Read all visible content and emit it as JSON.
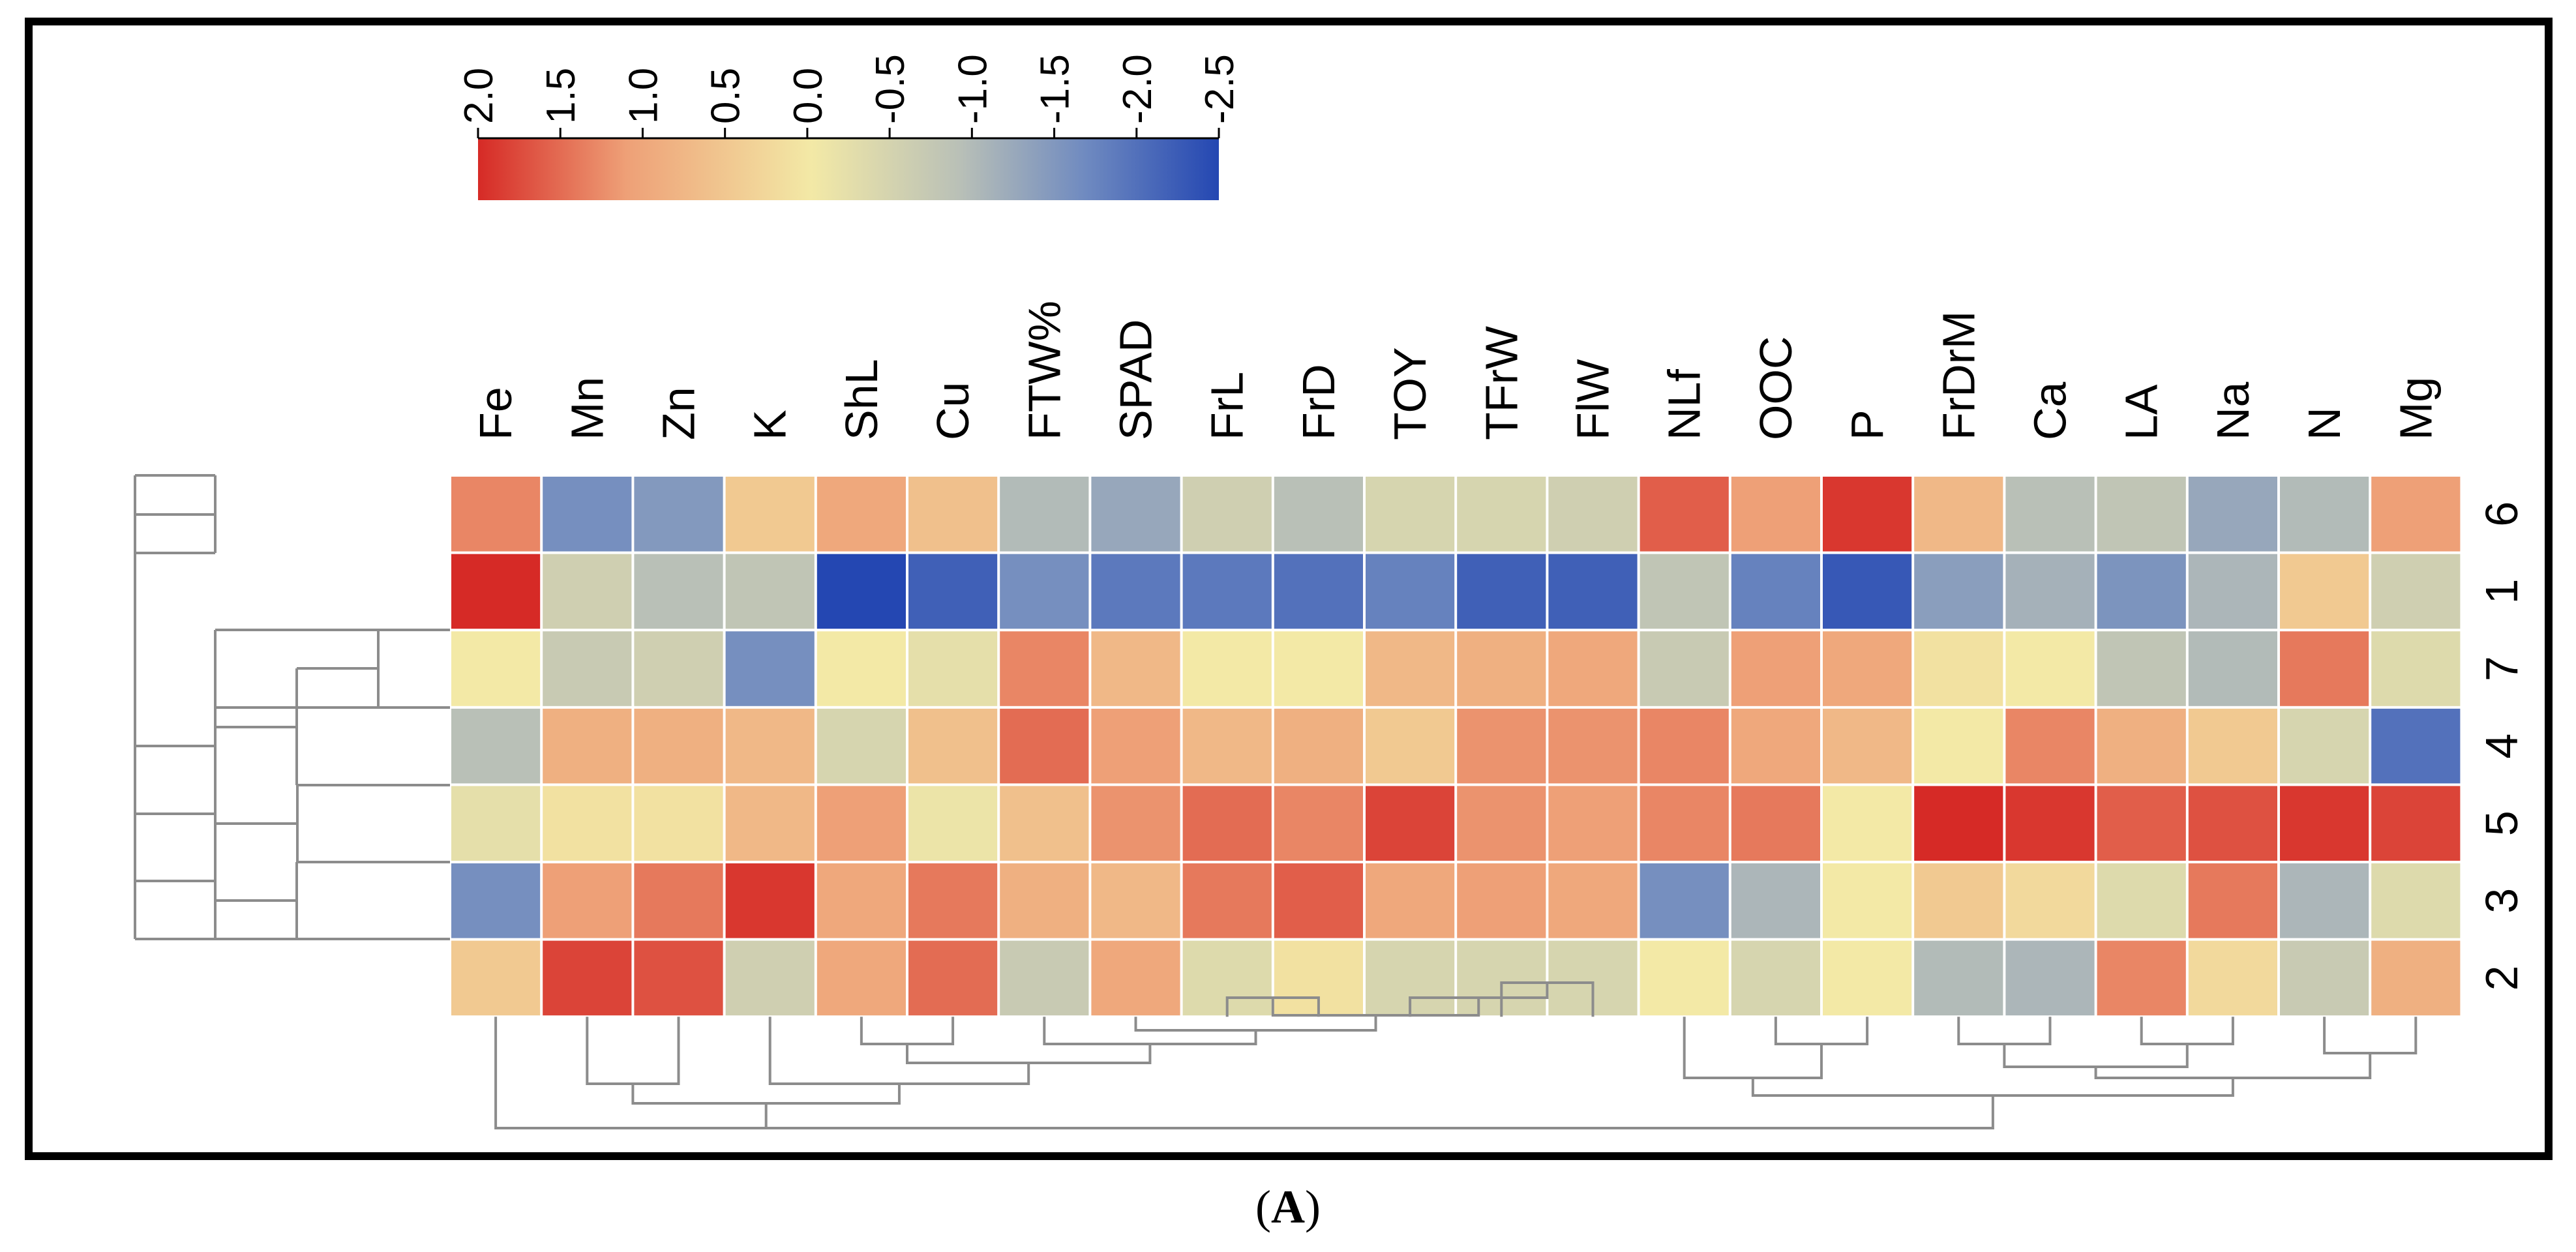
{
  "caption": {
    "open": "(",
    "letter": "A",
    "close": ")"
  },
  "chart_data": {
    "type": "heatmap",
    "columns": [
      "Fe",
      "Mn",
      "Zn",
      "K",
      "ShL",
      "Cu",
      "FTW%",
      "SPAD",
      "FrL",
      "FrD",
      "TOY",
      "TFrW",
      "FlW",
      "NLf",
      "OOC",
      "P",
      "FrDrM",
      "Ca",
      "LA",
      "Na",
      "N",
      "Mg"
    ],
    "rows": [
      "6",
      "1",
      "7",
      "4",
      "5",
      "3",
      "2"
    ],
    "values": [
      [
        1.3,
        -1.6,
        -1.4,
        0.6,
        1.0,
        0.7,
        -0.7,
        -1.1,
        -0.3,
        -0.6,
        -0.2,
        -0.2,
        -0.3,
        1.6,
        1.1,
        1.9,
        0.8,
        -0.6,
        -0.5,
        -1.1,
        -0.7,
        1.1
      ],
      [
        2.0,
        -0.3,
        -0.6,
        -0.5,
        -2.5,
        -2.2,
        -1.6,
        -1.9,
        -1.9,
        -2.0,
        -1.8,
        -2.2,
        -2.2,
        -0.5,
        -1.8,
        -2.3,
        -1.3,
        -0.9,
        -1.5,
        -0.8,
        0.6,
        -0.3
      ],
      [
        0.2,
        -0.4,
        -0.3,
        -1.6,
        0.2,
        0.0,
        1.3,
        0.8,
        0.2,
        0.2,
        0.8,
        0.9,
        1.0,
        -0.4,
        1.1,
        1.0,
        0.3,
        0.2,
        -0.5,
        -0.7,
        1.4,
        -0.1
      ],
      [
        -0.6,
        0.9,
        0.9,
        0.8,
        -0.2,
        0.7,
        1.5,
        1.1,
        0.8,
        0.9,
        0.6,
        1.2,
        1.2,
        1.3,
        1.0,
        0.8,
        0.2,
        1.3,
        0.9,
        0.6,
        -0.2,
        -2.0
      ],
      [
        0.0,
        0.3,
        0.3,
        0.8,
        1.1,
        0.1,
        0.7,
        1.2,
        1.5,
        1.3,
        1.8,
        1.2,
        1.1,
        1.3,
        1.4,
        0.2,
        2.0,
        1.9,
        1.6,
        1.7,
        1.9,
        1.8
      ],
      [
        -1.6,
        1.1,
        1.4,
        1.9,
        1.0,
        1.4,
        0.9,
        0.8,
        1.4,
        1.6,
        1.0,
        1.1,
        1.0,
        -1.6,
        -0.8,
        0.2,
        0.6,
        0.4,
        -0.1,
        1.4,
        -0.8,
        -0.1
      ],
      [
        0.6,
        1.8,
        1.7,
        -0.3,
        1.0,
        1.5,
        -0.4,
        1.0,
        -0.1,
        0.3,
        -0.2,
        -0.2,
        -0.2,
        0.2,
        -0.2,
        0.2,
        -0.7,
        -0.8,
        1.3,
        0.4,
        -0.4,
        0.9
      ]
    ],
    "color_scale": {
      "min": -2.5,
      "max": 2.0,
      "ticks": [
        "2.0",
        "1.5",
        "1.0",
        "0.5",
        "0.0",
        "-0.5",
        "-1.0",
        "-1.5",
        "-2.0",
        "-2.5"
      ],
      "colors": [
        "#2447b2",
        "#6f8ac0",
        "#b9c0b7",
        "#f3e9a6",
        "#eea077",
        "#d62a26"
      ]
    },
    "row_dendrogram": true,
    "column_dendrogram": true
  }
}
